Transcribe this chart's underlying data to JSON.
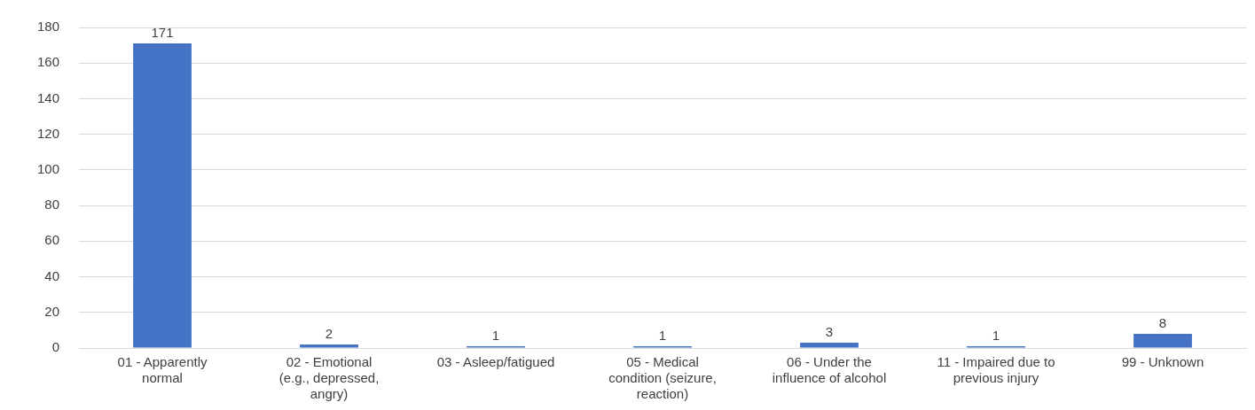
{
  "chart_data": {
    "type": "bar",
    "categories": [
      "01 - Apparently normal",
      "02 - Emotional (e.g., depressed, angry)",
      "03 - Asleep/fatigued",
      "05 - Medical condition (seizure, reaction)",
      "06 - Under the influence of alcohol",
      "11 - Impaired due to previous injury",
      "99 - Unknown"
    ],
    "values": [
      171,
      2,
      1,
      1,
      3,
      1,
      8
    ],
    "color": "#4472c4",
    "ylim": [
      0,
      180
    ],
    "yticks": [
      0,
      20,
      40,
      60,
      80,
      100,
      120,
      140,
      160,
      180
    ],
    "grid": "y",
    "legend": false,
    "data_labels": true
  }
}
